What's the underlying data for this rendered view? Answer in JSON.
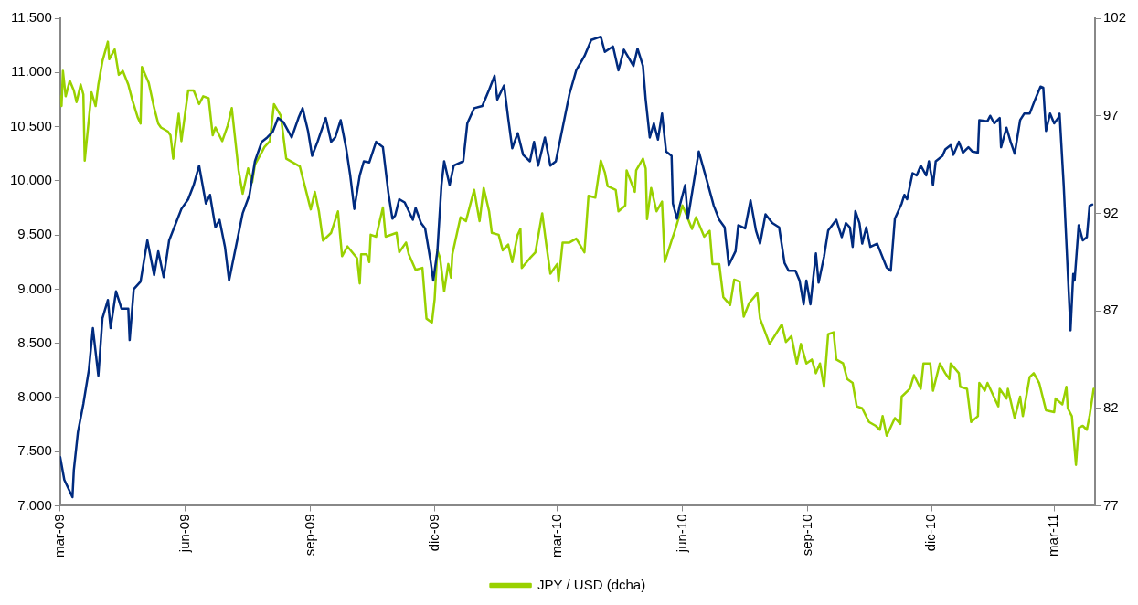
{
  "chart_data": {
    "type": "line",
    "legend": "bottom",
    "grid": false,
    "marker": "none",
    "line_style": "solid",
    "xlim": [
      "2009-03-01",
      "2011-03-31"
    ],
    "xticks": [
      {
        "value": "2009-03",
        "label": "mar-09"
      },
      {
        "value": "2009-06",
        "label": "jun-09"
      },
      {
        "value": "2009-09",
        "label": "sep-09"
      },
      {
        "value": "2009-12",
        "label": "dic-09"
      },
      {
        "value": "2010-03",
        "label": "mar-10"
      },
      {
        "value": "2010-06",
        "label": "jun-10"
      },
      {
        "value": "2010-09",
        "label": "sep-10"
      },
      {
        "value": "2010-12",
        "label": "dic-10"
      },
      {
        "value": "2011-03",
        "label": "mar-11"
      }
    ],
    "ylim": [
      7000,
      11500
    ],
    "yticks": [
      {
        "value": 7000,
        "label": "7.000"
      },
      {
        "value": 7500,
        "label": "7.500"
      },
      {
        "value": 8000,
        "label": "8.000"
      },
      {
        "value": 8500,
        "label": "8.500"
      },
      {
        "value": 9000,
        "label": "9.000"
      },
      {
        "value": 9500,
        "label": "9.500"
      },
      {
        "value": 10000,
        "label": "10.000"
      },
      {
        "value": 10500,
        "label": "10.500"
      },
      {
        "value": 11000,
        "label": "11.000"
      },
      {
        "value": 11500,
        "label": "11.500"
      }
    ],
    "y2lim": [
      77,
      102
    ],
    "y2ticks": [
      77,
      82,
      87,
      92,
      97,
      102
    ],
    "series": [
      {
        "color": "#002b7f",
        "x": [
          "2009-03-01",
          "2009-03-04",
          "2009-03-10",
          "2009-03-11",
          "2009-03-14",
          "2009-03-18",
          "2009-03-22",
          "2009-03-25",
          "2009-03-29",
          "2009-04-01",
          "2009-04-05",
          "2009-04-07",
          "2009-04-11",
          "2009-04-15",
          "2009-04-20",
          "2009-04-21",
          "2009-04-24",
          "2009-04-29",
          "2009-05-04",
          "2009-05-09",
          "2009-05-12",
          "2009-05-16",
          "2009-05-20",
          "2009-05-25",
          "2009-05-29",
          "2009-06-03",
          "2009-06-07",
          "2009-06-11",
          "2009-06-16",
          "2009-06-19",
          "2009-06-23",
          "2009-06-26",
          "2009-06-30",
          "2009-07-03",
          "2009-07-08",
          "2009-07-13",
          "2009-07-18",
          "2009-07-22",
          "2009-07-27",
          "2009-07-31",
          "2009-08-04",
          "2009-08-08",
          "2009-08-12",
          "2009-08-18",
          "2009-08-23",
          "2009-08-26",
          "2009-08-30",
          "2009-09-02",
          "2009-09-06",
          "2009-09-12",
          "2009-09-16",
          "2009-09-19",
          "2009-09-23",
          "2009-09-27",
          "2009-09-30",
          "2009-10-03",
          "2009-10-07",
          "2009-10-10",
          "2009-10-14",
          "2009-10-19",
          "2009-10-24",
          "2009-10-28",
          "2009-10-31",
          "2009-11-02",
          "2009-11-05",
          "2009-11-09",
          "2009-11-15",
          "2009-11-17",
          "2009-11-21",
          "2009-11-24",
          "2009-11-28",
          "2009-11-30",
          "2009-12-03",
          "2009-12-06",
          "2009-12-08",
          "2009-12-12",
          "2009-12-15",
          "2009-12-22",
          "2009-12-25",
          "2009-12-30",
          "2010-01-05",
          "2010-01-10",
          "2010-01-14",
          "2010-01-16",
          "2010-01-21",
          "2010-01-24",
          "2010-01-27",
          "2010-01-31",
          "2010-02-04",
          "2010-02-09",
          "2010-02-12",
          "2010-02-15",
          "2010-02-20",
          "2010-02-24",
          "2010-02-28",
          "2010-03-05",
          "2010-03-10",
          "2010-03-15",
          "2010-03-21",
          "2010-03-26",
          "2010-04-02",
          "2010-04-05",
          "2010-04-11",
          "2010-04-15",
          "2010-04-19",
          "2010-04-26",
          "2010-04-29",
          "2010-05-03",
          "2010-05-05",
          "2010-05-08",
          "2010-05-11",
          "2010-05-14",
          "2010-05-17",
          "2010-05-20",
          "2010-05-24",
          "2010-05-25",
          "2010-05-28",
          "2010-05-30",
          "2010-06-03",
          "2010-06-05",
          "2010-06-09",
          "2010-06-13",
          "2010-06-19",
          "2010-06-24",
          "2010-06-28",
          "2010-07-02",
          "2010-07-05",
          "2010-07-10",
          "2010-07-12",
          "2010-07-17",
          "2010-07-21",
          "2010-07-25",
          "2010-07-28",
          "2010-08-01",
          "2010-08-06",
          "2010-08-11",
          "2010-08-15",
          "2010-08-18",
          "2010-08-23",
          "2010-08-26",
          "2010-08-29",
          "2010-08-31",
          "2010-09-03",
          "2010-09-07",
          "2010-09-09",
          "2010-09-13",
          "2010-09-16",
          "2010-09-22",
          "2010-09-26",
          "2010-09-29",
          "2010-10-02",
          "2010-10-04",
          "2010-10-06",
          "2010-10-09",
          "2010-10-11",
          "2010-10-14",
          "2010-10-17",
          "2010-10-22",
          "2010-10-29",
          "2010-11-01",
          "2010-11-04",
          "2010-11-09",
          "2010-11-11",
          "2010-11-13",
          "2010-11-17",
          "2010-11-20",
          "2010-11-23",
          "2010-11-27",
          "2010-11-29",
          "2010-12-02",
          "2010-12-04",
          "2010-12-09",
          "2010-12-11",
          "2010-12-15",
          "2010-12-17",
          "2010-12-21",
          "2010-12-24",
          "2010-12-28",
          "2010-12-31",
          "2011-01-04",
          "2011-01-05",
          "2011-01-11",
          "2011-01-13",
          "2011-01-16",
          "2011-01-20",
          "2011-01-21",
          "2011-01-25",
          "2011-01-28",
          "2011-01-31",
          "2011-02-04",
          "2011-02-07",
          "2011-02-11",
          "2011-02-15",
          "2011-02-19",
          "2011-02-21",
          "2011-02-23",
          "2011-02-26",
          "2011-03-01",
          "2011-03-04",
          "2011-03-05",
          "2011-03-08",
          "2011-03-13",
          "2011-03-15",
          "2011-03-16",
          "2011-03-19",
          "2011-03-22",
          "2011-03-25",
          "2011-03-27",
          "2011-03-29"
        ],
        "values": [
          7450,
          7240,
          7080,
          7330,
          7680,
          7940,
          8250,
          8640,
          8200,
          8730,
          8900,
          8640,
          8980,
          8820,
          8820,
          8530,
          9000,
          9070,
          9450,
          9130,
          9350,
          9110,
          9450,
          9610,
          9740,
          9830,
          9960,
          10140,
          9790,
          9870,
          9570,
          9640,
          9390,
          9080,
          9390,
          9700,
          9870,
          10180,
          10360,
          10400,
          10450,
          10580,
          10540,
          10400,
          10580,
          10670,
          10460,
          10230,
          10360,
          10580,
          10360,
          10400,
          10560,
          10300,
          10050,
          9740,
          10050,
          10180,
          10170,
          10360,
          10310,
          9890,
          9650,
          9680,
          9830,
          9800,
          9640,
          9750,
          9610,
          9560,
          9260,
          9080,
          9350,
          9960,
          10180,
          9960,
          10140,
          10180,
          10530,
          10670,
          10690,
          10840,
          10970,
          10750,
          10880,
          10580,
          10300,
          10440,
          10240,
          10180,
          10360,
          10140,
          10400,
          10140,
          10180,
          10490,
          10800,
          11020,
          11150,
          11300,
          11330,
          11190,
          11240,
          11020,
          11210,
          11060,
          11220,
          11060,
          10750,
          10400,
          10530,
          10380,
          10620,
          10270,
          10230,
          9790,
          9650,
          9770,
          9960,
          9650,
          9960,
          10270,
          10000,
          9770,
          9640,
          9570,
          9220,
          9350,
          9590,
          9560,
          9820,
          9540,
          9420,
          9690,
          9610,
          9570,
          9240,
          9170,
          9170,
          9080,
          8860,
          9080,
          8860,
          9330,
          9060,
          9300,
          9540,
          9640,
          9480,
          9610,
          9570,
          9390,
          9720,
          9610,
          9420,
          9570,
          9390,
          9420,
          9200,
          9170,
          9650,
          9790,
          9870,
          9830,
          10070,
          10050,
          10140,
          10050,
          10180,
          9960,
          10180,
          10230,
          10290,
          10330,
          10240,
          10360,
          10260,
          10310,
          10270,
          10260,
          10560,
          10550,
          10600,
          10530,
          10580,
          10310,
          10490,
          10360,
          10250,
          10560,
          10620,
          10620,
          10750,
          10870,
          10860,
          10460,
          10620,
          10530,
          10580,
          10620,
          9960,
          8620,
          9140,
          9080,
          9590,
          9450,
          9480,
          9770,
          9780
        ]
      },
      {
        "name": "JPY / USD (dcha)",
        "color": "#99d100",
        "axis": "y2",
        "x": [
          "2009-03-01",
          "2009-03-02",
          "2009-03-03",
          "2009-03-05",
          "2009-03-08",
          "2009-03-11",
          "2009-03-13",
          "2009-03-16",
          "2009-03-18",
          "2009-03-19",
          "2009-03-21",
          "2009-03-24",
          "2009-03-27",
          "2009-03-29",
          "2009-04-01",
          "2009-04-05",
          "2009-04-06",
          "2009-04-10",
          "2009-04-13",
          "2009-04-16",
          "2009-04-20",
          "2009-04-23",
          "2009-04-27",
          "2009-04-29",
          "2009-04-30",
          "2009-05-05",
          "2009-05-09",
          "2009-05-12",
          "2009-05-14",
          "2009-05-19",
          "2009-05-21",
          "2009-05-23",
          "2009-05-27",
          "2009-05-29",
          "2009-06-03",
          "2009-06-07",
          "2009-06-11",
          "2009-06-14",
          "2009-06-18",
          "2009-06-21",
          "2009-06-23",
          "2009-06-28",
          "2009-07-02",
          "2009-07-05",
          "2009-07-10",
          "2009-07-13",
          "2009-07-17",
          "2009-07-20",
          "2009-07-22",
          "2009-07-26",
          "2009-07-29",
          "2009-08-02",
          "2009-08-05",
          "2009-08-10",
          "2009-08-14",
          "2009-08-24",
          "2009-09-01",
          "2009-09-04",
          "2009-09-07",
          "2009-09-10",
          "2009-09-16",
          "2009-09-21",
          "2009-09-24",
          "2009-09-28",
          "2009-10-05",
          "2009-10-07",
          "2009-10-08",
          "2009-10-12",
          "2009-10-14",
          "2009-10-15",
          "2009-10-19",
          "2009-10-24",
          "2009-10-26",
          "2009-11-03",
          "2009-11-05",
          "2009-11-10",
          "2009-11-12",
          "2009-11-17",
          "2009-11-22",
          "2009-11-25",
          "2009-11-29",
          "2009-12-01",
          "2009-12-03",
          "2009-12-05",
          "2009-12-08",
          "2009-12-11",
          "2009-12-13",
          "2009-12-14",
          "2009-12-20",
          "2009-12-24",
          "2009-12-30",
          "2010-01-03",
          "2010-01-06",
          "2010-01-10",
          "2010-01-12",
          "2010-01-17",
          "2010-01-20",
          "2010-01-24",
          "2010-01-27",
          "2010-01-31",
          "2010-02-02",
          "2010-02-03",
          "2010-02-09",
          "2010-02-13",
          "2010-02-18",
          "2010-02-21",
          "2010-02-24",
          "2010-03-01",
          "2010-03-02",
          "2010-03-05",
          "2010-03-10",
          "2010-03-15",
          "2010-03-21",
          "2010-03-24",
          "2010-03-29",
          "2010-04-02",
          "2010-04-05",
          "2010-04-07",
          "2010-04-13",
          "2010-04-15",
          "2010-04-20",
          "2010-04-21",
          "2010-04-27",
          "2010-04-28",
          "2010-05-03",
          "2010-05-05",
          "2010-05-06",
          "2010-05-09",
          "2010-05-13",
          "2010-05-17",
          "2010-05-19",
          "2010-05-24",
          "2010-05-26",
          "2010-06-01",
          "2010-06-04",
          "2010-06-08",
          "2010-06-11",
          "2010-06-17",
          "2010-06-21",
          "2010-06-23",
          "2010-06-28",
          "2010-07-01",
          "2010-07-06",
          "2010-07-09",
          "2010-07-13",
          "2010-07-16",
          "2010-07-20",
          "2010-07-26",
          "2010-07-28",
          "2010-08-04",
          "2010-08-13",
          "2010-08-16",
          "2010-08-20",
          "2010-08-24",
          "2010-08-27",
          "2010-08-31",
          "2010-09-04",
          "2010-09-07",
          "2010-09-10",
          "2010-09-13",
          "2010-09-16",
          "2010-09-20",
          "2010-09-22",
          "2010-09-27",
          "2010-09-30",
          "2010-10-04",
          "2010-10-07",
          "2010-10-11",
          "2010-10-16",
          "2010-10-21",
          "2010-10-24",
          "2010-10-26",
          "2010-10-29",
          "2010-11-04",
          "2010-11-08",
          "2010-11-09",
          "2010-11-15",
          "2010-11-18",
          "2010-11-23",
          "2010-11-25",
          "2010-11-30",
          "2010-12-02",
          "2010-12-07",
          "2010-12-11",
          "2010-12-14",
          "2010-12-15",
          "2010-12-21",
          "2010-12-22",
          "2010-12-27",
          "2010-12-30",
          "2011-01-04",
          "2011-01-05",
          "2011-01-09",
          "2011-01-11",
          "2011-01-19",
          "2011-01-20",
          "2011-01-25",
          "2011-01-26",
          "2011-01-31",
          "2011-02-04",
          "2011-02-06",
          "2011-02-11",
          "2011-02-14",
          "2011-02-18",
          "2011-02-23",
          "2011-03-01",
          "2011-03-02",
          "2011-03-07",
          "2011-03-10",
          "2011-03-11",
          "2011-03-14",
          "2011-03-17",
          "2011-03-19",
          "2011-03-22",
          "2011-03-25",
          "2011-03-27",
          "2011-03-30"
        ],
        "values": [
          98.0,
          97.5,
          99.3,
          98.0,
          98.8,
          98.3,
          97.7,
          98.6,
          98.1,
          94.7,
          96.1,
          98.2,
          97.5,
          98.6,
          99.8,
          100.8,
          99.9,
          100.4,
          99.1,
          99.3,
          98.6,
          97.8,
          96.9,
          96.6,
          99.5,
          98.7,
          97.4,
          96.6,
          96.4,
          96.2,
          96.0,
          94.8,
          97.1,
          95.7,
          98.3,
          98.3,
          97.6,
          98.0,
          97.9,
          96.0,
          96.4,
          95.7,
          96.5,
          97.4,
          94.2,
          93.0,
          94.3,
          93.6,
          94.5,
          95.0,
          95.4,
          95.7,
          97.6,
          97.0,
          94.8,
          94.4,
          92.2,
          93.1,
          92.1,
          90.6,
          91.0,
          92.1,
          89.8,
          90.3,
          89.7,
          88.4,
          89.9,
          89.9,
          89.5,
          90.9,
          90.8,
          92.3,
          90.8,
          91.0,
          90.0,
          90.5,
          89.9,
          89.1,
          89.2,
          86.6,
          86.4,
          87.6,
          90.1,
          89.7,
          88.0,
          89.4,
          88.7,
          89.9,
          91.8,
          91.6,
          93.2,
          91.6,
          93.3,
          92.1,
          91.0,
          90.9,
          90.1,
          90.4,
          89.5,
          90.9,
          91.2,
          89.2,
          89.7,
          90.0,
          92.0,
          90.4,
          88.9,
          89.4,
          88.5,
          90.5,
          90.5,
          90.7,
          90.0,
          92.9,
          92.8,
          94.7,
          94.1,
          93.4,
          93.2,
          92.1,
          92.4,
          94.2,
          93.1,
          94.2,
          94.8,
          94.3,
          91.7,
          93.3,
          92.1,
          92.6,
          89.5,
          90.6,
          91.0,
          92.4,
          91.9,
          91.2,
          91.8,
          90.8,
          91.1,
          89.4,
          89.4,
          87.7,
          87.3,
          88.6,
          88.5,
          86.7,
          87.4,
          87.9,
          86.6,
          85.3,
          86.3,
          85.4,
          85.7,
          84.3,
          85.3,
          84.3,
          84.5,
          83.8,
          84.3,
          83.1,
          85.8,
          85.9,
          84.5,
          84.3,
          83.5,
          83.3,
          82.1,
          82.0,
          81.3,
          81.1,
          80.9,
          81.6,
          80.6,
          81.5,
          81.2,
          82.6,
          83.0,
          83.7,
          83.0,
          84.3,
          84.3,
          82.9,
          84.3,
          83.8,
          83.5,
          84.3,
          83.8,
          83.1,
          83.0,
          81.3,
          81.6,
          83.3,
          82.9,
          83.3,
          82.1,
          83.0,
          82.5,
          83.0,
          81.5,
          82.6,
          81.6,
          83.6,
          83.8,
          83.3,
          81.9,
          81.8,
          82.5,
          82.2,
          83.1,
          82.0,
          81.6,
          79.1,
          81.0,
          81.1,
          80.9,
          81.6,
          83.0
        ]
      }
    ]
  }
}
